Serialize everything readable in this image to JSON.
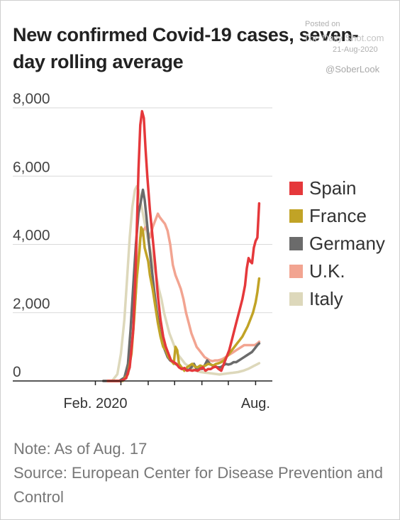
{
  "title": "New confirmed Covid-19 cases, seven-day rolling average",
  "watermark": {
    "posted": "Posted on",
    "site": "The Daily Shot.com",
    "date": "21-Aug-2020",
    "handle": "@SoberLook"
  },
  "note": "Note: As of Aug. 17",
  "source": "Source: European Center for Disease Prevention and Control",
  "chart_data": {
    "type": "line",
    "x_unit": "day index from Jan. 1, 2020",
    "xlim": [
      0,
      232
    ],
    "ylim": [
      0,
      8000
    ],
    "yticks": [
      0,
      2000,
      4000,
      6000,
      8000
    ],
    "ytick_labels": [
      "0",
      "2,000",
      "4,000",
      "6,000",
      "8,000"
    ],
    "xtick_labels": [
      {
        "label": "Feb. 2020",
        "x": 31
      },
      {
        "label": "Aug.",
        "x": 213
      }
    ],
    "minor_xticks": [
      31,
      60,
      91,
      121,
      152,
      182,
      213
    ],
    "grid": true,
    "legend_position": "right",
    "series": [
      {
        "name": "Spain",
        "color": "#e5383b",
        "points": [
          [
            45,
            0
          ],
          [
            60,
            0
          ],
          [
            66,
            80
          ],
          [
            70,
            400
          ],
          [
            74,
            1500
          ],
          [
            77,
            3500
          ],
          [
            80,
            6200
          ],
          [
            82,
            7500
          ],
          [
            84,
            7900
          ],
          [
            86,
            7700
          ],
          [
            88,
            6800
          ],
          [
            90,
            6000
          ],
          [
            93,
            5000
          ],
          [
            96,
            4200
          ],
          [
            99,
            3400
          ],
          [
            102,
            2500
          ],
          [
            105,
            1800
          ],
          [
            108,
            1300
          ],
          [
            111,
            1000
          ],
          [
            114,
            800
          ],
          [
            117,
            600
          ],
          [
            120,
            550
          ],
          [
            123,
            500
          ],
          [
            126,
            400
          ],
          [
            129,
            350
          ],
          [
            132,
            380
          ],
          [
            135,
            300
          ],
          [
            138,
            320
          ],
          [
            141,
            300
          ],
          [
            144,
            320
          ],
          [
            147,
            300
          ],
          [
            150,
            350
          ],
          [
            153,
            400
          ],
          [
            156,
            300
          ],
          [
            159,
            350
          ],
          [
            162,
            350
          ],
          [
            165,
            400
          ],
          [
            168,
            420
          ],
          [
            171,
            350
          ],
          [
            174,
            300
          ],
          [
            177,
            500
          ],
          [
            180,
            700
          ],
          [
            183,
            900
          ],
          [
            186,
            1200
          ],
          [
            189,
            1500
          ],
          [
            192,
            1800
          ],
          [
            195,
            2100
          ],
          [
            198,
            2400
          ],
          [
            201,
            2800
          ],
          [
            203,
            3300
          ],
          [
            205,
            3600
          ],
          [
            207,
            3500
          ],
          [
            209,
            3450
          ],
          [
            211,
            3900
          ],
          [
            213,
            4100
          ],
          [
            215,
            4200
          ],
          [
            217,
            5200
          ]
        ]
      },
      {
        "name": "France",
        "color": "#c1a326",
        "points": [
          [
            45,
            0
          ],
          [
            62,
            0
          ],
          [
            68,
            200
          ],
          [
            72,
            800
          ],
          [
            75,
            1800
          ],
          [
            78,
            3000
          ],
          [
            81,
            3800
          ],
          [
            83,
            4500
          ],
          [
            85,
            4400
          ],
          [
            87,
            3900
          ],
          [
            89,
            3700
          ],
          [
            91,
            3500
          ],
          [
            93,
            3100
          ],
          [
            96,
            2700
          ],
          [
            99,
            2200
          ],
          [
            102,
            1700
          ],
          [
            105,
            1300
          ],
          [
            108,
            1000
          ],
          [
            111,
            900
          ],
          [
            114,
            700
          ],
          [
            117,
            600
          ],
          [
            120,
            500
          ],
          [
            122,
            1000
          ],
          [
            124,
            900
          ],
          [
            126,
            500
          ],
          [
            129,
            400
          ],
          [
            132,
            300
          ],
          [
            135,
            400
          ],
          [
            138,
            450
          ],
          [
            141,
            500
          ],
          [
            144,
            420
          ],
          [
            147,
            400
          ],
          [
            150,
            450
          ],
          [
            153,
            420
          ],
          [
            156,
            450
          ],
          [
            159,
            500
          ],
          [
            162,
            480
          ],
          [
            165,
            450
          ],
          [
            168,
            500
          ],
          [
            171,
            520
          ],
          [
            174,
            550
          ],
          [
            177,
            600
          ],
          [
            180,
            700
          ],
          [
            183,
            800
          ],
          [
            186,
            900
          ],
          [
            189,
            1000
          ],
          [
            192,
            1100
          ],
          [
            195,
            1200
          ],
          [
            198,
            1300
          ],
          [
            201,
            1450
          ],
          [
            204,
            1600
          ],
          [
            207,
            1800
          ],
          [
            210,
            2000
          ],
          [
            213,
            2300
          ],
          [
            215,
            2600
          ],
          [
            217,
            3000
          ]
        ]
      },
      {
        "name": "Germany",
        "color": "#6b6b6b",
        "points": [
          [
            40,
            0
          ],
          [
            58,
            0
          ],
          [
            64,
            100
          ],
          [
            68,
            500
          ],
          [
            71,
            1500
          ],
          [
            74,
            2800
          ],
          [
            77,
            4000
          ],
          [
            80,
            4900
          ],
          [
            83,
            5300
          ],
          [
            85,
            5600
          ],
          [
            87,
            5300
          ],
          [
            89,
            4800
          ],
          [
            92,
            4000
          ],
          [
            95,
            3300
          ],
          [
            98,
            2600
          ],
          [
            101,
            2000
          ],
          [
            104,
            1500
          ],
          [
            107,
            1100
          ],
          [
            110,
            900
          ],
          [
            113,
            700
          ],
          [
            116,
            600
          ],
          [
            119,
            550
          ],
          [
            122,
            500
          ],
          [
            125,
            450
          ],
          [
            128,
            400
          ],
          [
            131,
            350
          ],
          [
            134,
            350
          ],
          [
            137,
            320
          ],
          [
            140,
            400
          ],
          [
            143,
            500
          ],
          [
            146,
            350
          ],
          [
            149,
            400
          ],
          [
            152,
            350
          ],
          [
            155,
            450
          ],
          [
            158,
            600
          ],
          [
            161,
            500
          ],
          [
            164,
            450
          ],
          [
            167,
            420
          ],
          [
            170,
            400
          ],
          [
            173,
            400
          ],
          [
            176,
            450
          ],
          [
            179,
            500
          ],
          [
            182,
            480
          ],
          [
            185,
            500
          ],
          [
            188,
            550
          ],
          [
            191,
            550
          ],
          [
            194,
            600
          ],
          [
            197,
            650
          ],
          [
            200,
            700
          ],
          [
            203,
            750
          ],
          [
            206,
            800
          ],
          [
            209,
            850
          ],
          [
            212,
            950
          ],
          [
            215,
            1050
          ],
          [
            217,
            1100
          ]
        ]
      },
      {
        "name": "U.K.",
        "color": "#f2a491",
        "points": [
          [
            40,
            0
          ],
          [
            60,
            0
          ],
          [
            66,
            100
          ],
          [
            70,
            500
          ],
          [
            73,
            1200
          ],
          [
            76,
            2200
          ],
          [
            79,
            3400
          ],
          [
            82,
            4200
          ],
          [
            85,
            4400
          ],
          [
            88,
            4500
          ],
          [
            90,
            4400
          ],
          [
            93,
            4200
          ],
          [
            96,
            4500
          ],
          [
            99,
            4700
          ],
          [
            102,
            4900
          ],
          [
            104,
            4800
          ],
          [
            107,
            4700
          ],
          [
            110,
            4600
          ],
          [
            113,
            4400
          ],
          [
            116,
            4000
          ],
          [
            119,
            3400
          ],
          [
            122,
            3100
          ],
          [
            125,
            2900
          ],
          [
            128,
            2700
          ],
          [
            131,
            2400
          ],
          [
            134,
            2000
          ],
          [
            137,
            1700
          ],
          [
            140,
            1400
          ],
          [
            143,
            1200
          ],
          [
            146,
            1000
          ],
          [
            149,
            900
          ],
          [
            152,
            800
          ],
          [
            155,
            700
          ],
          [
            158,
            650
          ],
          [
            161,
            600
          ],
          [
            164,
            580
          ],
          [
            167,
            600
          ],
          [
            170,
            600
          ],
          [
            173,
            620
          ],
          [
            176,
            650
          ],
          [
            179,
            700
          ],
          [
            182,
            750
          ],
          [
            185,
            800
          ],
          [
            188,
            850
          ],
          [
            191,
            900
          ],
          [
            194,
            950
          ],
          [
            197,
            1000
          ],
          [
            200,
            1050
          ],
          [
            203,
            1050
          ],
          [
            206,
            1050
          ],
          [
            209,
            1050
          ],
          [
            212,
            1050
          ],
          [
            215,
            1100
          ],
          [
            217,
            1150
          ]
        ]
      },
      {
        "name": "Italy",
        "color": "#ddd8bb",
        "points": [
          [
            40,
            0
          ],
          [
            50,
            0
          ],
          [
            56,
            200
          ],
          [
            60,
            800
          ],
          [
            64,
            1800
          ],
          [
            67,
            3000
          ],
          [
            70,
            4200
          ],
          [
            73,
            5100
          ],
          [
            76,
            5600
          ],
          [
            78,
            5700
          ],
          [
            80,
            5600
          ],
          [
            82,
            5300
          ],
          [
            85,
            4900
          ],
          [
            88,
            4500
          ],
          [
            91,
            4100
          ],
          [
            94,
            3800
          ],
          [
            97,
            3400
          ],
          [
            100,
            3100
          ],
          [
            103,
            2700
          ],
          [
            106,
            2400
          ],
          [
            109,
            2000
          ],
          [
            112,
            1700
          ],
          [
            115,
            1400
          ],
          [
            118,
            1200
          ],
          [
            121,
            1000
          ],
          [
            124,
            800
          ],
          [
            127,
            700
          ],
          [
            130,
            600
          ],
          [
            133,
            500
          ],
          [
            136,
            450
          ],
          [
            139,
            400
          ],
          [
            142,
            350
          ],
          [
            145,
            300
          ],
          [
            148,
            280
          ],
          [
            151,
            260
          ],
          [
            154,
            250
          ],
          [
            157,
            240
          ],
          [
            160,
            230
          ],
          [
            163,
            220
          ],
          [
            166,
            210
          ],
          [
            169,
            200
          ],
          [
            172,
            190
          ],
          [
            175,
            200
          ],
          [
            178,
            210
          ],
          [
            181,
            220
          ],
          [
            184,
            230
          ],
          [
            187,
            240
          ],
          [
            190,
            250
          ],
          [
            193,
            260
          ],
          [
            196,
            280
          ],
          [
            199,
            300
          ],
          [
            202,
            330
          ],
          [
            205,
            360
          ],
          [
            208,
            400
          ],
          [
            211,
            440
          ],
          [
            214,
            480
          ],
          [
            217,
            520
          ]
        ]
      }
    ]
  }
}
